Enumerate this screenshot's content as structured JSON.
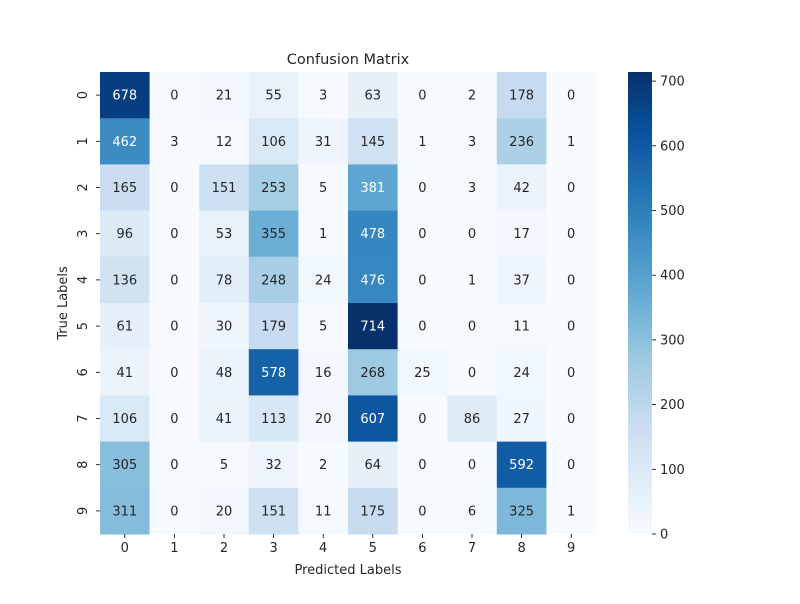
{
  "chart_data": {
    "type": "heatmap",
    "title": "Confusion Matrix",
    "xlabel": "Predicted Labels",
    "ylabel": "True Labels",
    "x_categories": [
      "0",
      "1",
      "2",
      "3",
      "4",
      "5",
      "6",
      "7",
      "8",
      "9"
    ],
    "y_categories": [
      "0",
      "1",
      "2",
      "3",
      "4",
      "5",
      "6",
      "7",
      "8",
      "9"
    ],
    "matrix": [
      [
        678,
        0,
        21,
        55,
        3,
        63,
        0,
        2,
        178,
        0
      ],
      [
        462,
        3,
        12,
        106,
        31,
        145,
        1,
        3,
        236,
        1
      ],
      [
        165,
        0,
        151,
        253,
        5,
        381,
        0,
        3,
        42,
        0
      ],
      [
        96,
        0,
        53,
        355,
        1,
        478,
        0,
        0,
        17,
        0
      ],
      [
        136,
        0,
        78,
        248,
        24,
        476,
        0,
        1,
        37,
        0
      ],
      [
        61,
        0,
        30,
        179,
        5,
        714,
        0,
        0,
        11,
        0
      ],
      [
        41,
        0,
        48,
        578,
        16,
        268,
        25,
        0,
        24,
        0
      ],
      [
        106,
        0,
        41,
        113,
        20,
        607,
        0,
        86,
        27,
        0
      ],
      [
        305,
        0,
        5,
        32,
        2,
        64,
        0,
        0,
        592,
        0
      ],
      [
        311,
        0,
        20,
        151,
        11,
        175,
        0,
        6,
        325,
        1
      ]
    ],
    "colormap": "Blues",
    "colorbar": {
      "range": [
        0,
        714
      ],
      "ticks": [
        0,
        100,
        200,
        300,
        400,
        500,
        600,
        700
      ]
    }
  }
}
